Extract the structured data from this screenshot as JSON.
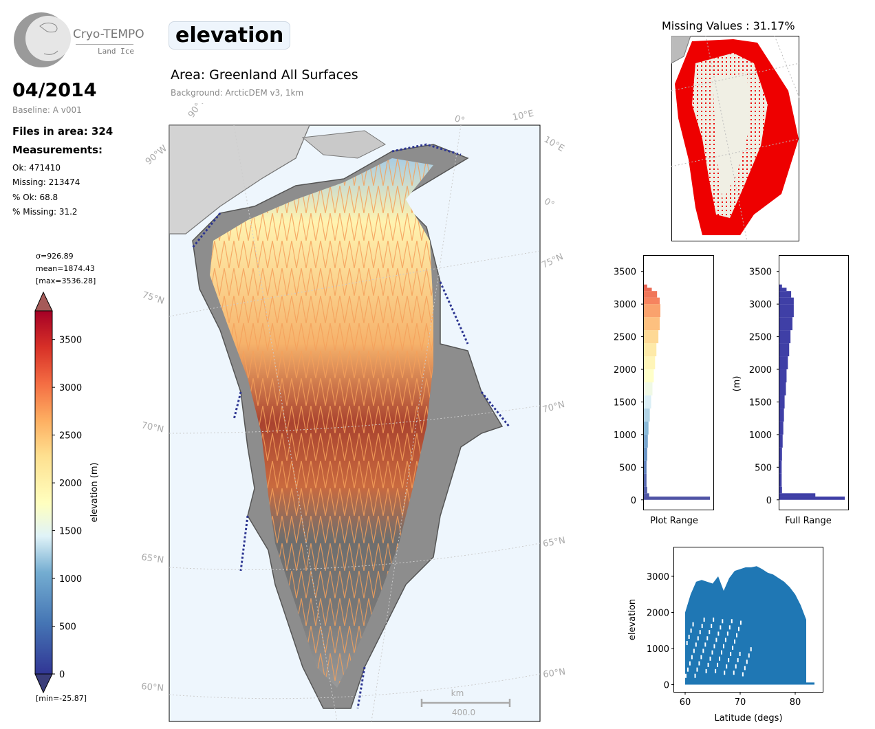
{
  "logo": {
    "name": "Cryo-TEMPO",
    "sub": "Land Ice"
  },
  "sidebar": {
    "month": "04/2014",
    "baseline": "Baseline: A v001",
    "files": "Files in area: 324",
    "measurements_heading": "Measurements:",
    "ok": "Ok: 471410",
    "missing": "Missing: 213474",
    "pct_ok": "% Ok: 68.8",
    "pct_missing": "% Missing: 31.2"
  },
  "colorbar": {
    "sigma": "σ=926.89",
    "mean": "mean=1874.43",
    "max": "[max=3536.28]",
    "min": "[min=-25.87]",
    "label": "elevation (m)",
    "ticks": [
      "0",
      "500",
      "1000",
      "1500",
      "2000",
      "2500",
      "3000",
      "3500"
    ],
    "tick_values": [
      0,
      500,
      1000,
      1500,
      2000,
      2500,
      3000,
      3500
    ],
    "range": [
      0,
      3800
    ]
  },
  "header": {
    "parameter": "elevation",
    "area": "Area: Greenland All Surfaces",
    "background": "Background: ArcticDEM v3, 1km"
  },
  "map": {
    "graticule_labels": [
      "90°W",
      "90°W",
      "0°",
      "10°E",
      "10°E",
      "0°",
      "75°N",
      "75°N",
      "70°N",
      "70°N",
      "65°N",
      "65°N",
      "60°N",
      "60°N"
    ],
    "scale_unit": "km",
    "scale_value": "400.0"
  },
  "missing_map": {
    "title": "Missing Values : 31.17%"
  },
  "hist_plot_range": {
    "xlabel": "Plot Range",
    "ticks": [
      "0",
      "500",
      "1000",
      "1500",
      "2000",
      "2500",
      "3000",
      "3500"
    ],
    "tick_values": [
      0,
      500,
      1000,
      1500,
      2000,
      2500,
      3000,
      3500
    ],
    "ylim": [
      -150,
      3750
    ]
  },
  "hist_full_range": {
    "xlabel": "Full Range",
    "ylabel": "(m)",
    "ticks": [
      "0",
      "500",
      "1000",
      "1500",
      "2000",
      "2500",
      "3000",
      "3500"
    ],
    "tick_values": [
      0,
      500,
      1000,
      1500,
      2000,
      2500,
      3000,
      3500
    ],
    "ylim": [
      -150,
      3750
    ]
  },
  "chart_data": [
    {
      "type": "bar",
      "orientation": "horizontal",
      "name": "hist_plot_range",
      "xlabel": "Plot Range",
      "bins_elevation": [
        0,
        50,
        100,
        200,
        400,
        600,
        800,
        1000,
        1200,
        1400,
        1600,
        1800,
        2000,
        2200,
        2400,
        2600,
        2800,
        3000,
        3100,
        3200,
        3250
      ],
      "relative_counts": [
        1.0,
        0.08,
        0.05,
        0.04,
        0.04,
        0.05,
        0.06,
        0.07,
        0.09,
        0.11,
        0.13,
        0.15,
        0.17,
        0.19,
        0.22,
        0.24,
        0.25,
        0.24,
        0.2,
        0.12,
        0.05
      ]
    },
    {
      "type": "bar",
      "orientation": "horizontal",
      "name": "hist_full_range",
      "xlabel": "Full Range",
      "ylabel": "(m)",
      "bins_elevation": [
        0,
        50,
        100,
        200,
        400,
        600,
        800,
        1000,
        1200,
        1400,
        1600,
        1800,
        2000,
        2200,
        2400,
        2600,
        2800,
        3000,
        3100,
        3200,
        3250
      ],
      "relative_counts": [
        1.0,
        0.55,
        0.04,
        0.035,
        0.035,
        0.04,
        0.05,
        0.06,
        0.07,
        0.08,
        0.1,
        0.11,
        0.13,
        0.15,
        0.17,
        0.2,
        0.22,
        0.22,
        0.18,
        0.11,
        0.04
      ]
    },
    {
      "type": "scatter",
      "name": "elevation_vs_latitude",
      "xlabel": "Latitude (degs)",
      "ylabel": "elevation",
      "xlim": [
        58,
        85
      ],
      "ylim": [
        -200,
        3800
      ],
      "xticks": [
        "60",
        "70",
        "80"
      ],
      "xtick_values": [
        60,
        70,
        80
      ],
      "yticks": [
        "0",
        "1000",
        "2000",
        "3000"
      ],
      "ytick_values": [
        0,
        1000,
        2000,
        3000
      ],
      "envelope_lat": [
        60,
        61,
        62,
        63,
        64,
        65,
        66,
        67,
        68,
        69,
        70,
        71,
        72,
        73,
        74,
        75,
        76,
        77,
        78,
        79,
        80,
        81,
        82
      ],
      "envelope_max": [
        2000,
        2500,
        2850,
        2900,
        2850,
        2800,
        3000,
        2600,
        2950,
        3150,
        3200,
        3250,
        3250,
        3280,
        3200,
        3100,
        3050,
        2950,
        2850,
        2700,
        2500,
        2200,
        1800
      ]
    }
  ]
}
